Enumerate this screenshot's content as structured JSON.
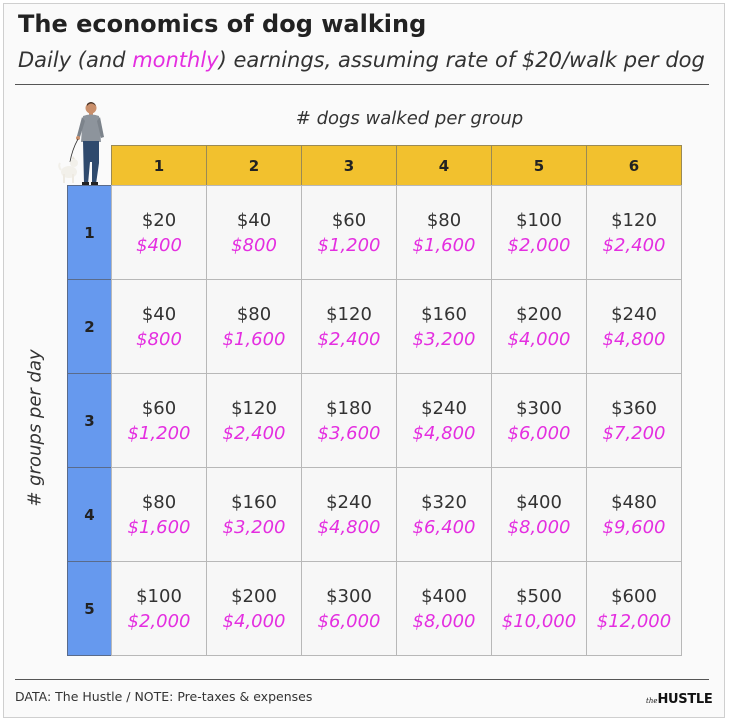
{
  "header": {
    "title": "The economics of dog walking",
    "subtitle_part1": "Daily (and ",
    "subtitle_highlight": "monthly",
    "subtitle_part2": ") earnings, assuming rate of $20/walk per dog"
  },
  "colors": {
    "header_yellow": "#f2c12e",
    "row_blue": "#6699ee",
    "monthly_pink": "#e42ee0"
  },
  "illustration": "person-walking-dog",
  "chart_data": {
    "type": "table",
    "column_axis_label": "# dogs walked per group",
    "row_axis_label": "# groups per day",
    "columns": [
      "1",
      "2",
      "3",
      "4",
      "5",
      "6"
    ],
    "rows": [
      {
        "label": "1",
        "daily": [
          "$20",
          "$40",
          "$60",
          "$80",
          "$100",
          "$120"
        ],
        "monthly": [
          "$400",
          "$800",
          "$1,200",
          "$1,600",
          "$2,000",
          "$2,400"
        ]
      },
      {
        "label": "2",
        "daily": [
          "$40",
          "$80",
          "$120",
          "$160",
          "$200",
          "$240"
        ],
        "monthly": [
          "$800",
          "$1,600",
          "$2,400",
          "$3,200",
          "$4,000",
          "$4,800"
        ]
      },
      {
        "label": "3",
        "daily": [
          "$60",
          "$120",
          "$180",
          "$240",
          "$300",
          "$360"
        ],
        "monthly": [
          "$1,200",
          "$2,400",
          "$3,600",
          "$4,800",
          "$6,000",
          "$7,200"
        ]
      },
      {
        "label": "4",
        "daily": [
          "$80",
          "$160",
          "$240",
          "$320",
          "$400",
          "$480"
        ],
        "monthly": [
          "$1,600",
          "$3,200",
          "$4,800",
          "$6,400",
          "$8,000",
          "$9,600"
        ]
      },
      {
        "label": "5",
        "daily": [
          "$100",
          "$200",
          "$300",
          "$400",
          "$500",
          "$600"
        ],
        "monthly": [
          "$2,000",
          "$4,000",
          "$6,000",
          "$8,000",
          "$10,000",
          "$12,000"
        ]
      }
    ]
  },
  "footer": {
    "note": "DATA: The Hustle / NOTE: Pre-taxes & expenses",
    "logo_small": "the",
    "logo_big": "HUSTLE"
  }
}
